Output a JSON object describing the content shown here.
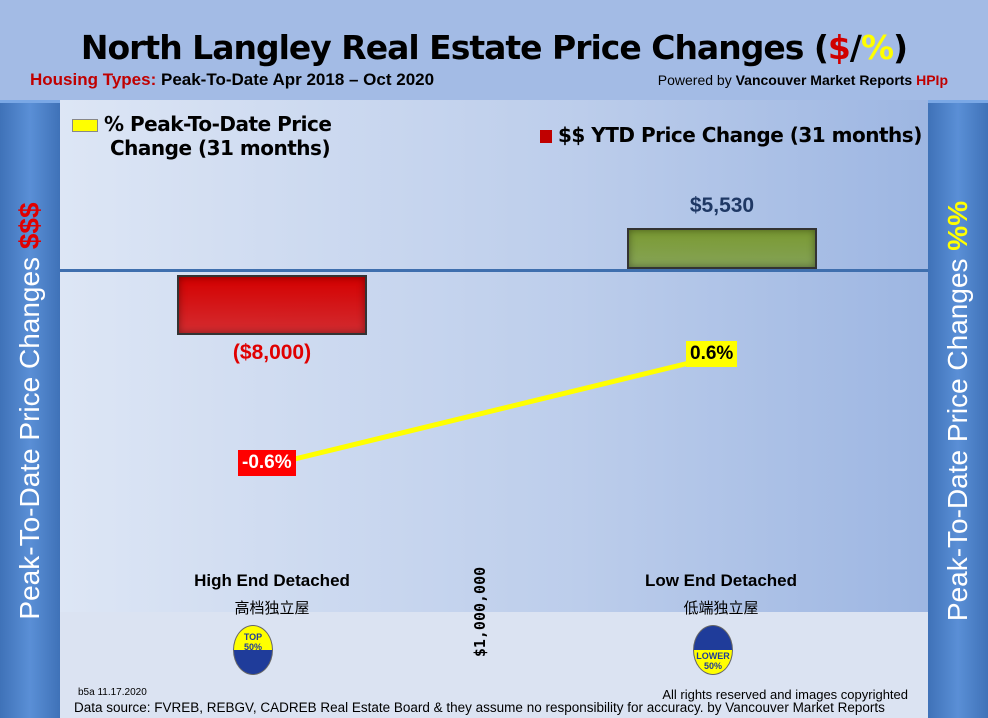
{
  "header": {
    "title_main": "North Langley Real Estate Price Changes (",
    "title_dollar": "$",
    "title_slash": "/",
    "title_pct": "%",
    "title_close": ")",
    "subtitle_label": "Housing Types:",
    "subtitle_text": "Peak-To-Date Apr 2018 – Oct 2020",
    "powered_prefix": "Powered by",
    "powered_brand": "Vancouver Market Reports",
    "powered_hpi": "HPIp"
  },
  "side": {
    "left_text": "Peak-To-Date Price Changes ",
    "left_accent": "$$$",
    "right_text": "Peak-To-Date  Price  Changes ",
    "right_accent": "%%"
  },
  "chart_data": {
    "type": "bar+line",
    "title": "North Langley Real Estate Price Changes ($/%)",
    "categories": [
      "High End Detached",
      "Low End Detached"
    ],
    "categories_cn": [
      "高档独立屋",
      "低端独立屋"
    ],
    "series": [
      {
        "name": "$$ YTD Price Change (31 months)",
        "type": "bar",
        "values": [
          -8000,
          5530
        ],
        "labels": [
          "($8,000)",
          "$5,530"
        ],
        "colors": [
          "#d40000",
          "#7a9a32"
        ]
      },
      {
        "name": "% Peak-To-Date Price Change (31 months)",
        "type": "line",
        "values": [
          -0.6,
          0.6
        ],
        "labels": [
          "-0.6%",
          "0.6%"
        ],
        "color": "#ffff00"
      }
    ],
    "divider_label": "$1,000,000",
    "legend": {
      "line_label_1": "% Peak-To-Date Price",
      "line_label_2": "Change (31 months)",
      "bar_label": "$$ YTD Price Change (31 months)"
    }
  },
  "badges": [
    {
      "line1": "TOP",
      "line2": "50%"
    },
    {
      "line1": "LOWER",
      "line2": "50%"
    }
  ],
  "footer": {
    "version": "b5a 11.17.2020",
    "rights": "All rights reserved and  images copyrighted",
    "source": "Data source: FVREB, REBGV, CADREB Real Estate Board & they assume no responsibility for accuracy. by Vancouver Market Reports"
  }
}
